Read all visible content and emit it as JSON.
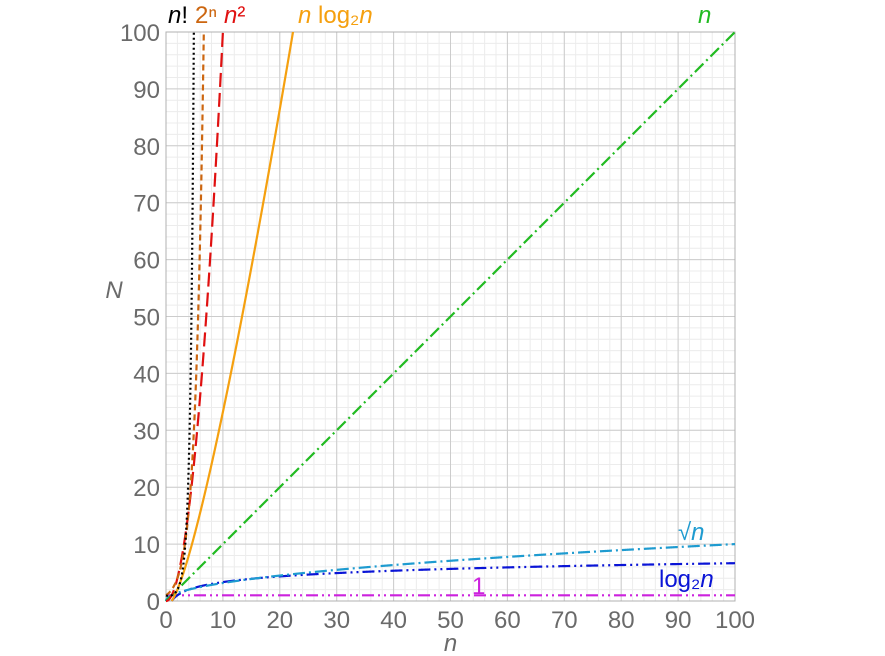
{
  "chart_data": {
    "type": "line",
    "xlabel": "n",
    "ylabel": "N",
    "xlim": [
      0,
      100
    ],
    "ylim": [
      0,
      100
    ],
    "x_ticks": [
      0,
      10,
      20,
      30,
      40,
      50,
      60,
      70,
      80,
      90,
      100
    ],
    "y_ticks": [
      0,
      10,
      20,
      30,
      40,
      50,
      60,
      70,
      80,
      90,
      100
    ],
    "x_tick_labels": [
      "0",
      "10",
      "20",
      "30",
      "40",
      "50",
      "60",
      "70",
      "80",
      "90",
      "100"
    ],
    "y_tick_labels": [
      "0",
      "10",
      "20",
      "30",
      "40",
      "50",
      "60",
      "70",
      "80",
      "90",
      "100"
    ],
    "grid": true,
    "minor_grid_step": 2,
    "series": [
      {
        "name": "1",
        "func": "const",
        "color": "#cc22dd",
        "dash": "dash-dot-dot"
      },
      {
        "name": "log₂n",
        "func": "log2",
        "color": "#0a14d6",
        "dash": "dash-dot-dot"
      },
      {
        "name": "√n",
        "func": "sqrt",
        "color": "#1e9bd0",
        "dash": "dash-dot"
      },
      {
        "name": "n",
        "func": "linear",
        "color": "#22bb22",
        "dash": "dash-dot"
      },
      {
        "name": "n log₂n",
        "func": "nlog2n",
        "color": "#f5a00f",
        "dash": "solid"
      },
      {
        "name": "n²",
        "func": "square",
        "color": "#e01010",
        "dash": "long-dash"
      },
      {
        "name": "2ⁿ",
        "func": "exp2",
        "color": "#cc6610",
        "dash": "dash"
      },
      {
        "name": "n!",
        "func": "factorial",
        "color": "#000000",
        "dash": "dot"
      }
    ],
    "labels": [
      {
        "series": "n!",
        "parts": [
          {
            "t": "n",
            "i": true
          },
          {
            "t": "!",
            "i": false
          }
        ]
      },
      {
        "series": "2ⁿ",
        "parts": [
          {
            "t": "2ⁿ",
            "i": false
          }
        ]
      },
      {
        "series": "n²",
        "parts": [
          {
            "t": "n",
            "i": true
          },
          {
            "t": "²",
            "i": false
          }
        ]
      },
      {
        "series": "n log₂n",
        "parts": [
          {
            "t": "n",
            "i": true
          },
          {
            "t": " log₂",
            "i": false
          },
          {
            "t": "n",
            "i": true
          }
        ]
      },
      {
        "series": "n",
        "parts": [
          {
            "t": "n",
            "i": true
          }
        ]
      },
      {
        "series": "√n",
        "parts": [
          {
            "t": "√",
            "i": false
          },
          {
            "t": "n",
            "i": true
          }
        ]
      },
      {
        "series": "log₂n",
        "parts": [
          {
            "t": "log₂",
            "i": false
          },
          {
            "t": "n",
            "i": true
          }
        ]
      },
      {
        "series": "1",
        "parts": [
          {
            "t": "1",
            "i": false
          }
        ]
      }
    ]
  }
}
